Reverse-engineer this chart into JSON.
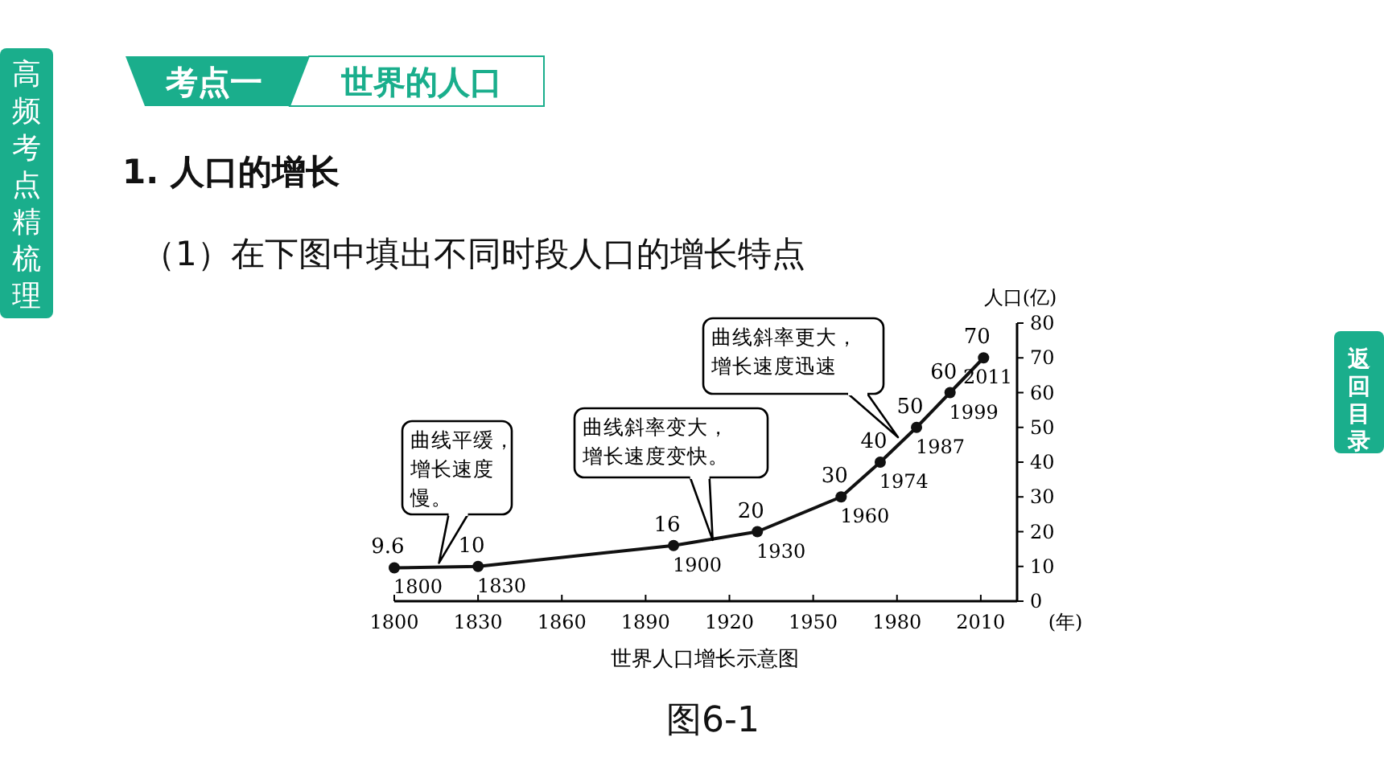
{
  "chart_data": {
    "type": "line",
    "title": "世界人口增长示意图",
    "ylabel": "人口(亿)",
    "xlabel": "(年)",
    "x": [
      1800,
      1830,
      1900,
      1930,
      1960,
      1974,
      1987,
      1999,
      2011
    ],
    "series": [
      {
        "color": "#111111",
        "values": [
          9.6,
          10,
          16,
          20,
          30,
          40,
          50,
          60,
          70
        ]
      }
    ],
    "xlim": [
      1800,
      2023
    ],
    "xticks": [
      1800,
      1830,
      1860,
      1890,
      1920,
      1950,
      1980,
      2010
    ],
    "ylim": [
      0,
      80
    ],
    "yticks": [
      0,
      10,
      20,
      30,
      40,
      50,
      60,
      70,
      80
    ],
    "data_labels": true,
    "marker": "circle",
    "line_style": "solid",
    "grid": false,
    "annotations": [
      {
        "text": "1800",
        "x": 1800,
        "y": 9.6
      },
      {
        "text": "1830",
        "x": 1830,
        "y": 10
      },
      {
        "text": "1900",
        "x": 1900,
        "y": 16
      },
      {
        "text": "1930",
        "x": 1930,
        "y": 20
      },
      {
        "text": "1960",
        "x": 1960,
        "y": 30
      },
      {
        "text": "1974",
        "x": 1974,
        "y": 40
      },
      {
        "text": "1987",
        "x": 1987,
        "y": 50
      },
      {
        "text": "1999",
        "x": 1999,
        "y": 60
      },
      {
        "text": "2011",
        "x": 2011,
        "y": 70
      },
      {
        "text": "曲线平缓，增长速度慢。",
        "x": 1816,
        "y": 11
      },
      {
        "text": "曲线斜率变大，增长速度变快。",
        "x": 1914,
        "y": 17.6
      },
      "曲线斜率更大，增长速度迅速",
      "考点一",
      "世界的人口",
      "1. 人口的增长",
      "（1）在下图中填出不同时段人口的增长特点",
      "图6-1",
      "高频考点精梳理",
      "返回目录"
    ]
  }
}
